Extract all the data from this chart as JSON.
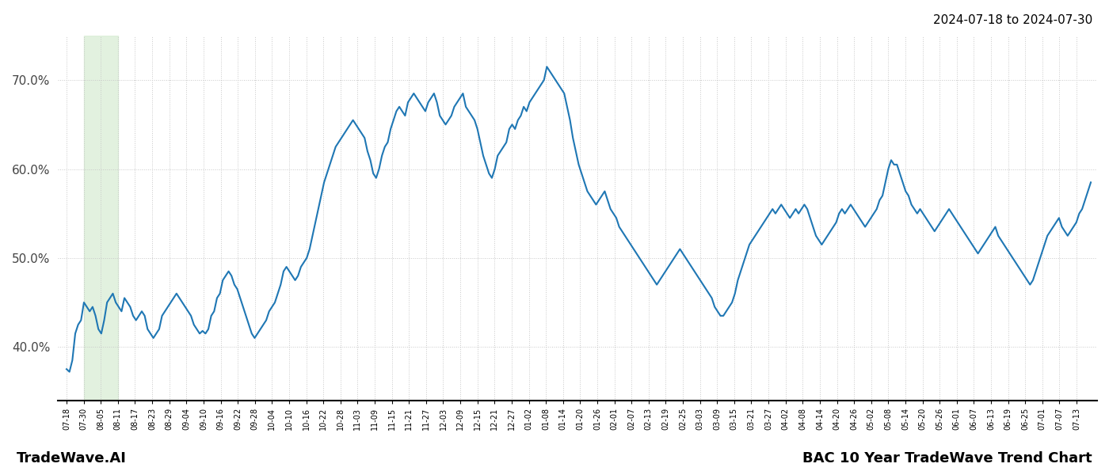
{
  "title_top_right": "2024-07-18 to 2024-07-30",
  "title_bottom_right": "BAC 10 Year TradeWave Trend Chart",
  "title_bottom_left": "TradeWave.AI",
  "line_color": "#1f77b4",
  "line_width": 1.5,
  "background_color": "#ffffff",
  "grid_color": "#c8c8c8",
  "grid_style": ":",
  "highlight_xstart": 1,
  "highlight_xend": 3,
  "highlight_color": "#d6ecd2",
  "highlight_alpha": 0.7,
  "ylim": [
    34,
    75
  ],
  "yticks": [
    40.0,
    50.0,
    60.0,
    70.0
  ],
  "x_labels": [
    "07-18",
    "07-30",
    "08-05",
    "08-11",
    "08-17",
    "08-23",
    "08-29",
    "09-04",
    "09-10",
    "09-16",
    "09-22",
    "09-28",
    "10-04",
    "10-10",
    "10-16",
    "10-22",
    "10-28",
    "11-03",
    "11-09",
    "11-15",
    "11-21",
    "11-27",
    "12-03",
    "12-09",
    "12-15",
    "12-21",
    "12-27",
    "01-02",
    "01-08",
    "01-14",
    "01-20",
    "01-26",
    "02-01",
    "02-07",
    "02-13",
    "02-19",
    "02-25",
    "03-03",
    "03-09",
    "03-15",
    "03-21",
    "03-27",
    "04-02",
    "04-08",
    "04-14",
    "04-20",
    "04-26",
    "05-02",
    "05-08",
    "05-14",
    "05-20",
    "05-26",
    "06-01",
    "06-07",
    "06-13",
    "06-19",
    "06-25",
    "07-01",
    "07-07",
    "07-13"
  ],
  "values": [
    37.5,
    37.2,
    38.5,
    41.5,
    42.5,
    43.0,
    45.0,
    44.5,
    44.0,
    44.5,
    43.5,
    42.0,
    41.5,
    43.0,
    45.0,
    45.5,
    46.0,
    45.0,
    44.5,
    44.0,
    45.5,
    45.0,
    44.5,
    43.5,
    43.0,
    43.5,
    44.0,
    43.5,
    42.0,
    41.5,
    41.0,
    41.5,
    42.0,
    43.5,
    44.0,
    44.5,
    45.0,
    45.5,
    46.0,
    45.5,
    45.0,
    44.5,
    44.0,
    43.5,
    42.5,
    42.0,
    41.5,
    41.8,
    41.5,
    42.0,
    43.5,
    44.0,
    45.5,
    46.0,
    47.5,
    48.0,
    48.5,
    48.0,
    47.0,
    46.5,
    45.5,
    44.5,
    43.5,
    42.5,
    41.5,
    41.0,
    41.5,
    42.0,
    42.5,
    43.0,
    44.0,
    44.5,
    45.0,
    46.0,
    47.0,
    48.5,
    49.0,
    48.5,
    48.0,
    47.5,
    48.0,
    49.0,
    49.5,
    50.0,
    51.0,
    52.5,
    54.0,
    55.5,
    57.0,
    58.5,
    59.5,
    60.5,
    61.5,
    62.5,
    63.0,
    63.5,
    64.0,
    64.5,
    65.0,
    65.5,
    65.0,
    64.5,
    64.0,
    63.5,
    62.0,
    61.0,
    59.5,
    59.0,
    60.0,
    61.5,
    62.5,
    63.0,
    64.5,
    65.5,
    66.5,
    67.0,
    66.5,
    66.0,
    67.5,
    68.0,
    68.5,
    68.0,
    67.5,
    67.0,
    66.5,
    67.5,
    68.0,
    68.5,
    67.5,
    66.0,
    65.5,
    65.0,
    65.5,
    66.0,
    67.0,
    67.5,
    68.0,
    68.5,
    67.0,
    66.5,
    66.0,
    65.5,
    64.5,
    63.0,
    61.5,
    60.5,
    59.5,
    59.0,
    60.0,
    61.5,
    62.0,
    62.5,
    63.0,
    64.5,
    65.0,
    64.5,
    65.5,
    66.0,
    67.0,
    66.5,
    67.5,
    68.0,
    68.5,
    69.0,
    69.5,
    70.0,
    71.5,
    71.0,
    70.5,
    70.0,
    69.5,
    69.0,
    68.5,
    67.0,
    65.5,
    63.5,
    62.0,
    60.5,
    59.5,
    58.5,
    57.5,
    57.0,
    56.5,
    56.0,
    56.5,
    57.0,
    57.5,
    56.5,
    55.5,
    55.0,
    54.5,
    53.5,
    53.0,
    52.5,
    52.0,
    51.5,
    51.0,
    50.5,
    50.0,
    49.5,
    49.0,
    48.5,
    48.0,
    47.5,
    47.0,
    47.5,
    48.0,
    48.5,
    49.0,
    49.5,
    50.0,
    50.5,
    51.0,
    50.5,
    50.0,
    49.5,
    49.0,
    48.5,
    48.0,
    47.5,
    47.0,
    46.5,
    46.0,
    45.5,
    44.5,
    44.0,
    43.5,
    43.5,
    44.0,
    44.5,
    45.0,
    46.0,
    47.5,
    48.5,
    49.5,
    50.5,
    51.5,
    52.0,
    52.5,
    53.0,
    53.5,
    54.0,
    54.5,
    55.0,
    55.5,
    55.0,
    55.5,
    56.0,
    55.5,
    55.0,
    54.5,
    55.0,
    55.5,
    55.0,
    55.5,
    56.0,
    55.5,
    54.5,
    53.5,
    52.5,
    52.0,
    51.5,
    52.0,
    52.5,
    53.0,
    53.5,
    54.0,
    55.0,
    55.5,
    55.0,
    55.5,
    56.0,
    55.5,
    55.0,
    54.5,
    54.0,
    53.5,
    54.0,
    54.5,
    55.0,
    55.5,
    56.5,
    57.0,
    58.5,
    60.0,
    61.0,
    60.5,
    60.5,
    59.5,
    58.5,
    57.5,
    57.0,
    56.0,
    55.5,
    55.0,
    55.5,
    55.0,
    54.5,
    54.0,
    53.5,
    53.0,
    53.5,
    54.0,
    54.5,
    55.0,
    55.5,
    55.0,
    54.5,
    54.0,
    53.5,
    53.0,
    52.5,
    52.0,
    51.5,
    51.0,
    50.5,
    51.0,
    51.5,
    52.0,
    52.5,
    53.0,
    53.5,
    52.5,
    52.0,
    51.5,
    51.0,
    50.5,
    50.0,
    49.5,
    49.0,
    48.5,
    48.0,
    47.5,
    47.0,
    47.5,
    48.5,
    49.5,
    50.5,
    51.5,
    52.5,
    53.0,
    53.5,
    54.0,
    54.5,
    53.5,
    53.0,
    52.5,
    53.0,
    53.5,
    54.0,
    55.0,
    55.5,
    56.5,
    57.5,
    58.5
  ]
}
